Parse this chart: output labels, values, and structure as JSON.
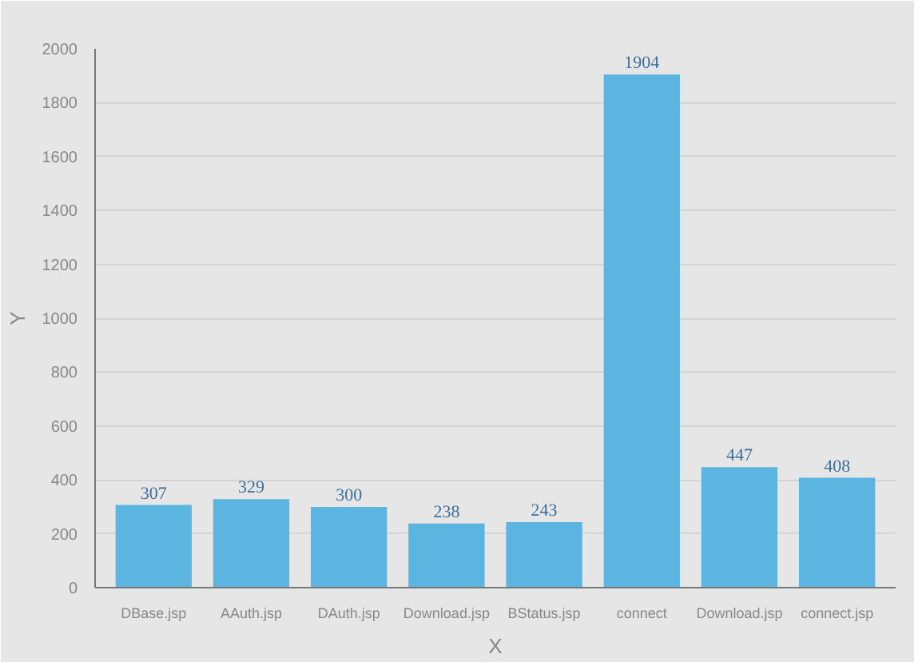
{
  "chart_data": {
    "type": "bar",
    "xlabel": "X",
    "ylabel": "Y",
    "categories": [
      "DBase.jsp",
      "AAuth.jsp",
      "DAuth.jsp",
      "Download.jsp",
      "BStatus.jsp",
      "connect",
      "Download.jsp",
      "connect.jsp"
    ],
    "values": [
      307,
      329,
      300,
      238,
      243,
      1904,
      447,
      408
    ],
    "color": "#5bb5e0",
    "ylim": [
      0,
      2000
    ],
    "yticks": [
      0,
      200,
      400,
      600,
      800,
      1000,
      1200,
      1400,
      1600,
      1800,
      2000
    ],
    "grid": "y",
    "data_labels": true
  }
}
